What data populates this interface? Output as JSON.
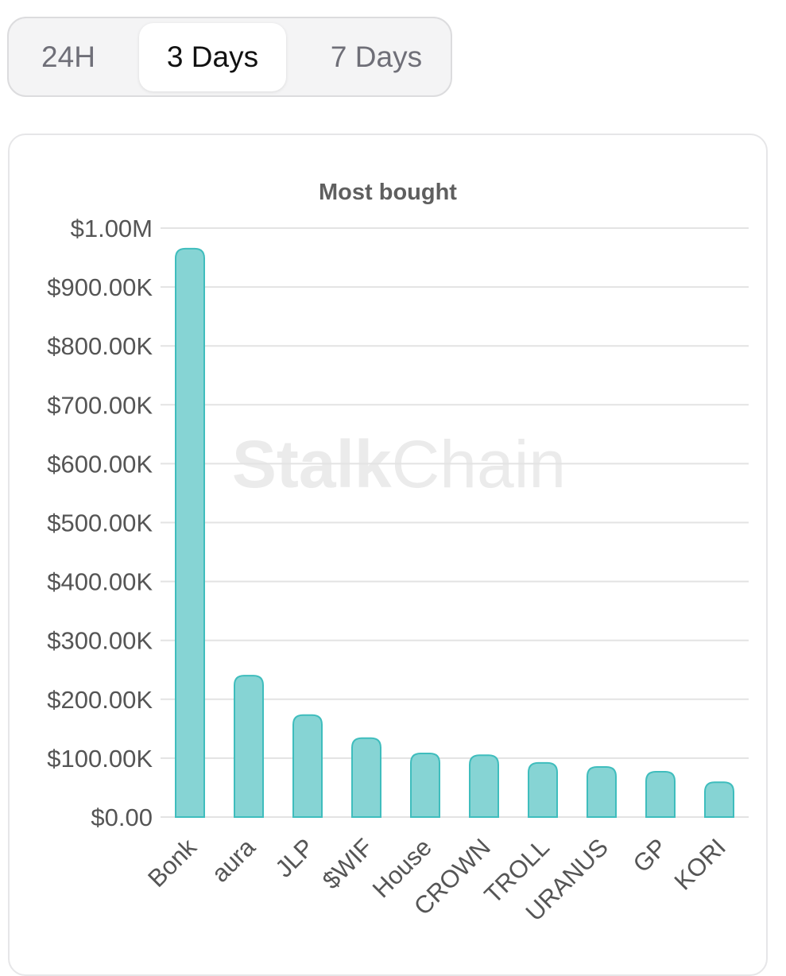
{
  "tabs": [
    {
      "label": "24H",
      "active": false
    },
    {
      "label": "3 Days",
      "active": true
    },
    {
      "label": "7 Days",
      "active": false
    }
  ],
  "watermark": {
    "bold": "Stalk",
    "light": "Chain"
  },
  "colors": {
    "bar_fill": "#86d4d4",
    "bar_stroke": "#3fbdbd",
    "grid": "#e3e3e3",
    "axis_text": "#555555",
    "title_text": "#5f5f5f",
    "watermark": "#ebebeb"
  },
  "chart_data": {
    "type": "bar",
    "title": "Most bought",
    "xlabel": "",
    "ylabel": "",
    "categories": [
      "Bonk",
      "aura",
      "JLP",
      "$WIF",
      "House",
      "CROWN",
      "TROLL",
      "URANUS",
      "GP",
      "KORI"
    ],
    "values": [
      965000,
      240000,
      173000,
      134000,
      108000,
      105000,
      92000,
      85000,
      77000,
      59000
    ],
    "ylim": [
      0,
      1000000
    ],
    "yticks": [
      "$0.00",
      "$100.00K",
      "$200.00K",
      "$300.00K",
      "$400.00K",
      "$500.00K",
      "$600.00K",
      "$700.00K",
      "$800.00K",
      "$900.00K",
      "$1.00M"
    ],
    "grid": true,
    "legend": "none"
  }
}
